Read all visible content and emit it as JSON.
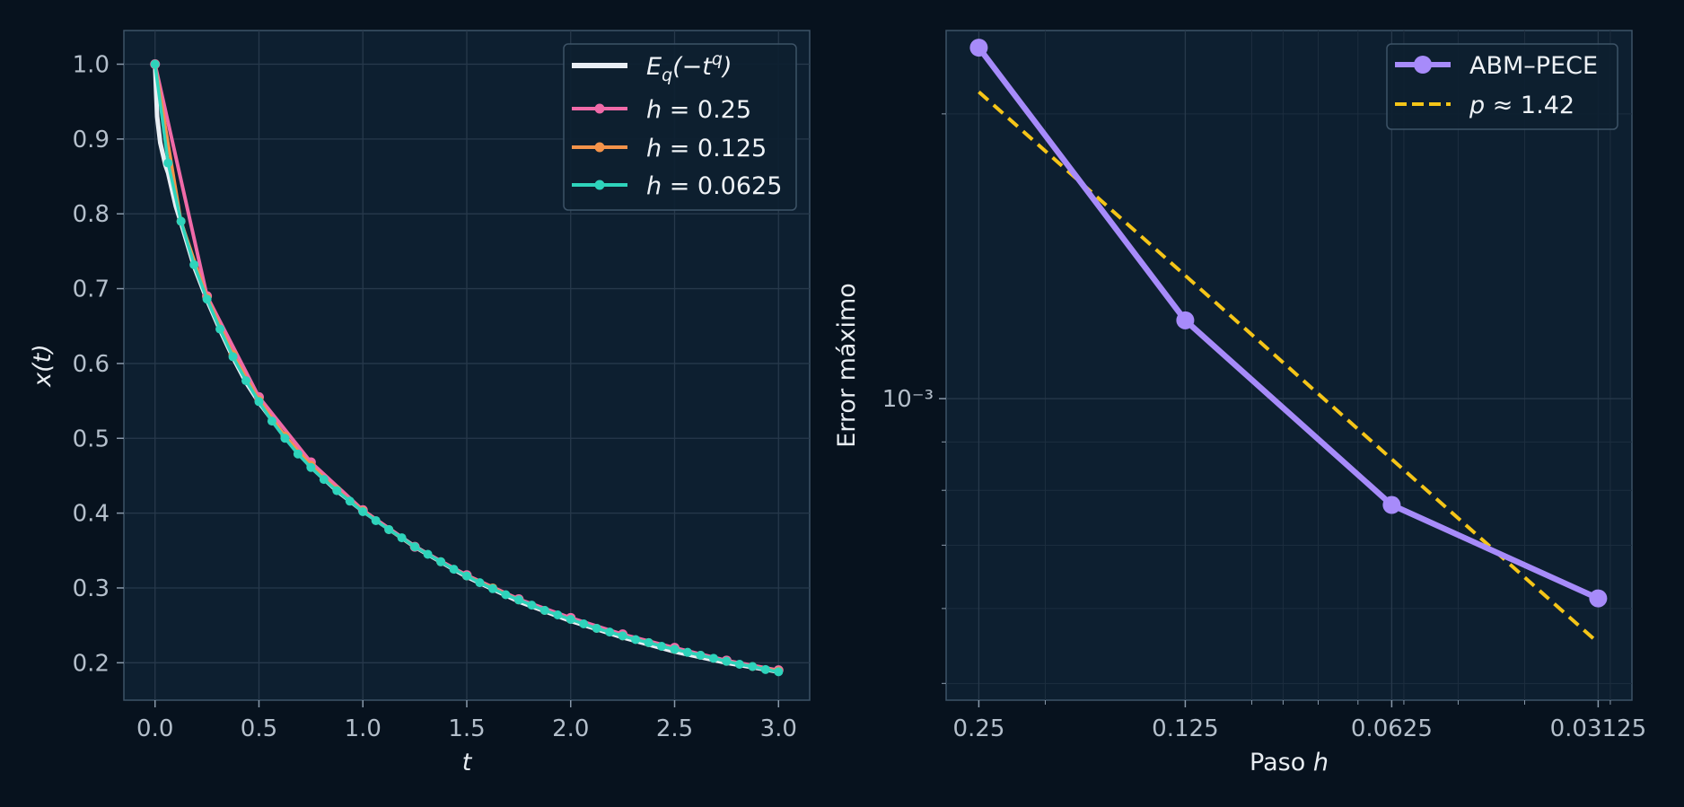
{
  "chart_data": [
    {
      "type": "line",
      "title": "",
      "xlabel": "t",
      "ylabel": "x(t)",
      "xlim": [
        -0.15,
        3.15
      ],
      "ylim": [
        0.15,
        1.045
      ],
      "xticks": [
        0.0,
        0.5,
        1.0,
        1.5,
        2.0,
        2.5,
        3.0
      ],
      "xtick_labels": [
        "0.0",
        "0.5",
        "1.0",
        "1.5",
        "2.0",
        "2.5",
        "3.0"
      ],
      "yticks": [
        0.2,
        0.3,
        0.4,
        0.5,
        0.6,
        0.7,
        0.8,
        0.9,
        1.0
      ],
      "ytick_labels": [
        "0.2",
        "0.3",
        "0.4",
        "0.5",
        "0.6",
        "0.7",
        "0.8",
        "0.9",
        "1.0"
      ],
      "grid": true,
      "legend_position": "top-right",
      "series": [
        {
          "name": "E_q(−t^q)",
          "color": "#e8eef4",
          "marker": false,
          "x": [
            0,
            0.01,
            0.025,
            0.05,
            0.0625,
            0.1,
            0.125,
            0.1875,
            0.25,
            0.3125,
            0.375,
            0.4375,
            0.5,
            0.625,
            0.75,
            0.875,
            1.0,
            1.25,
            1.5,
            1.75,
            2.0,
            2.25,
            2.5,
            2.75,
            3.0
          ],
          "y": [
            1.0,
            0.93,
            0.895,
            0.865,
            0.855,
            0.81,
            0.788,
            0.73,
            0.685,
            0.645,
            0.608,
            0.575,
            0.548,
            0.502,
            0.462,
            0.43,
            0.403,
            0.355,
            0.315,
            0.282,
            0.256,
            0.234,
            0.215,
            0.2,
            0.188
          ]
        },
        {
          "name": "h = 0.25",
          "color": "#f06aa8",
          "marker": true,
          "x": [
            0,
            0.25,
            0.5,
            0.75,
            1.0,
            1.25,
            1.5,
            1.75,
            2.0,
            2.25,
            2.5,
            2.75,
            3.0
          ],
          "y": [
            1.0,
            0.69,
            0.555,
            0.468,
            0.404,
            0.355,
            0.317,
            0.285,
            0.26,
            0.238,
            0.22,
            0.203,
            0.19
          ]
        },
        {
          "name": "h = 0.125",
          "color": "#f4934a",
          "marker": true,
          "x": [
            0,
            0.125,
            0.25,
            0.375,
            0.5,
            0.625,
            0.75,
            0.875,
            1.0,
            1.125,
            1.25,
            1.375,
            1.5,
            1.625,
            1.75,
            1.875,
            2.0,
            2.125,
            2.25,
            2.375,
            2.5,
            2.625,
            2.75,
            2.875,
            3.0
          ],
          "y": [
            1.0,
            0.79,
            0.688,
            0.612,
            0.551,
            0.503,
            0.464,
            0.431,
            0.403,
            0.378,
            0.355,
            0.335,
            0.316,
            0.3,
            0.284,
            0.27,
            0.258,
            0.246,
            0.236,
            0.227,
            0.218,
            0.21,
            0.202,
            0.195,
            0.189
          ]
        },
        {
          "name": "h = 0.0625",
          "color": "#2ed3bb",
          "marker": true,
          "x": [
            0,
            0.0625,
            0.125,
            0.1875,
            0.25,
            0.3125,
            0.375,
            0.4375,
            0.5,
            0.5625,
            0.625,
            0.6875,
            0.75,
            0.8125,
            0.875,
            0.9375,
            1.0,
            1.0625,
            1.125,
            1.1875,
            1.25,
            1.3125,
            1.375,
            1.4375,
            1.5,
            1.5625,
            1.625,
            1.6875,
            1.75,
            1.8125,
            1.875,
            1.9375,
            2.0,
            2.0625,
            2.125,
            2.1875,
            2.25,
            2.3125,
            2.375,
            2.4375,
            2.5,
            2.5625,
            2.625,
            2.6875,
            2.75,
            2.8125,
            2.875,
            2.9375,
            3.0
          ],
          "y": [
            1.0,
            0.868,
            0.79,
            0.732,
            0.686,
            0.646,
            0.609,
            0.577,
            0.549,
            0.523,
            0.5,
            0.479,
            0.461,
            0.445,
            0.43,
            0.416,
            0.402,
            0.39,
            0.378,
            0.367,
            0.355,
            0.345,
            0.335,
            0.325,
            0.316,
            0.307,
            0.299,
            0.291,
            0.284,
            0.277,
            0.27,
            0.264,
            0.258,
            0.252,
            0.246,
            0.241,
            0.236,
            0.231,
            0.227,
            0.222,
            0.218,
            0.214,
            0.21,
            0.206,
            0.202,
            0.198,
            0.195,
            0.191,
            0.188
          ]
        }
      ]
    },
    {
      "type": "line",
      "title": "",
      "xlabel": "Paso h",
      "ylabel": "Error máximo",
      "xscale": "log",
      "yscale": "log",
      "x_inverted": true,
      "xlim": [
        0.279,
        0.0279
      ],
      "ylim": [
        0.00048,
        0.00245
      ],
      "xticks": [
        0.25,
        0.125,
        0.0625,
        0.03125
      ],
      "xtick_labels": [
        "0.25",
        "0.125",
        "0.0625",
        "0.03125"
      ],
      "yticks": [
        0.001
      ],
      "ytick_labels": [
        "10⁻³"
      ],
      "grid": true,
      "legend_position": "top-right",
      "series": [
        {
          "name": "ABM–PECE",
          "color": "#a78bfa",
          "marker": true,
          "x": [
            0.25,
            0.125,
            0.0625,
            0.03125
          ],
          "y": [
            0.00235,
            0.00121,
            0.000772,
            0.000615
          ]
        },
        {
          "name": "p ≈ 1.42",
          "color": "#f5c518",
          "dashed": true,
          "marker": false,
          "x": [
            0.25,
            0.03125
          ],
          "y": [
            0.00211,
            0.000552
          ]
        }
      ]
    }
  ]
}
